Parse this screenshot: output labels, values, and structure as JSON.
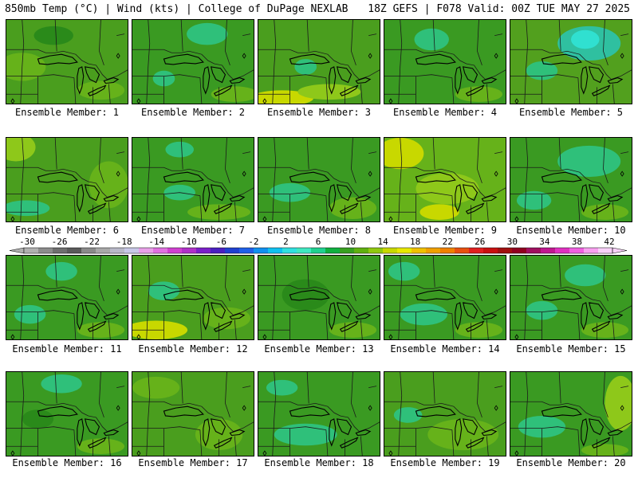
{
  "header": {
    "left": "850mb Temp (°C) | Wind (kts) | College of DuPage NEXLAB",
    "right": "18Z GEFS | F078 Valid: 00Z TUE MAY 27 2025"
  },
  "colorbar": {
    "labels": [
      "-30",
      "-26",
      "-22",
      "-18",
      "-14",
      "-10",
      "-6",
      "-2",
      "2",
      "6",
      "10",
      "14",
      "18",
      "22",
      "26",
      "30",
      "34",
      "38",
      "42"
    ],
    "colors": [
      "#b0b0b0",
      "#8c8c8c",
      "#6e6e6e",
      "#5a5a5a",
      "#8a8a8a",
      "#a8a8a8",
      "#b8b8c8",
      "#c8c8e8",
      "#e8a0e8",
      "#e070e0",
      "#d040d0",
      "#b030c8",
      "#7a20c8",
      "#4a20c0",
      "#2040d0",
      "#2060e8",
      "#1090f0",
      "#10c0f0",
      "#30e0e0",
      "#40e8c0",
      "#20d090",
      "#10b040",
      "#38a020",
      "#60b010",
      "#90c810",
      "#c8d800",
      "#e8e800",
      "#f0c000",
      "#f0a000",
      "#f08000",
      "#e85010",
      "#e02020",
      "#c81010",
      "#a01010",
      "#900020",
      "#a01060",
      "#c01890",
      "#e030c0",
      "#f060e0",
      "#f8a0f0",
      "#f8d0f8"
    ]
  },
  "panels": [
    {
      "label": "Ensemble Member: 1",
      "bg": "#4a9e1e",
      "blobs": [
        [
          "#66b21a",
          20,
          60,
          30,
          18
        ],
        [
          "#2a8a1a",
          60,
          20,
          25,
          12
        ],
        [
          "#66b21a",
          120,
          90,
          30,
          12
        ]
      ]
    },
    {
      "label": "Ensemble Member: 2",
      "bg": "#3a9a22",
      "blobs": [
        [
          "#2fc07a",
          95,
          18,
          26,
          14
        ],
        [
          "#2fc07a",
          40,
          75,
          14,
          10
        ],
        [
          "#66b21a",
          130,
          95,
          30,
          10
        ]
      ]
    },
    {
      "label": "Ensemble Member: 3",
      "bg": "#4a9e1e",
      "blobs": [
        [
          "#c8d800",
          30,
          100,
          40,
          10
        ],
        [
          "#8ec81a",
          90,
          92,
          40,
          10
        ],
        [
          "#2fc07a",
          60,
          60,
          14,
          10
        ]
      ]
    },
    {
      "label": "Ensemble Member: 4",
      "bg": "#3a9a22",
      "blobs": [
        [
          "#2fc07a",
          60,
          25,
          22,
          14
        ],
        [
          "#66b21a",
          120,
          95,
          30,
          10
        ]
      ]
    },
    {
      "label": "Ensemble Member: 5",
      "bg": "#52a01e",
      "blobs": [
        [
          "#2fc0a0",
          100,
          30,
          40,
          22
        ],
        [
          "#30e0d0",
          95,
          25,
          18,
          12
        ],
        [
          "#2fc07a",
          40,
          65,
          20,
          12
        ]
      ]
    },
    {
      "label": "Ensemble Member: 6",
      "bg": "#4a9e1e",
      "blobs": [
        [
          "#8ec81a",
          12,
          12,
          25,
          18
        ],
        [
          "#66b21a",
          130,
          60,
          25,
          30
        ],
        [
          "#2fc07a",
          25,
          90,
          30,
          10
        ]
      ]
    },
    {
      "label": "Ensemble Member: 7",
      "bg": "#3a9a22",
      "blobs": [
        [
          "#2fc07a",
          60,
          15,
          18,
          10
        ],
        [
          "#2fc07a",
          60,
          70,
          20,
          10
        ],
        [
          "#66b21a",
          110,
          95,
          40,
          10
        ]
      ]
    },
    {
      "label": "Ensemble Member: 8",
      "bg": "#3a9a22",
      "blobs": [
        [
          "#2fc07a",
          40,
          70,
          26,
          12
        ],
        [
          "#66b21a",
          120,
          90,
          30,
          14
        ]
      ]
    },
    {
      "label": "Ensemble Member: 9",
      "bg": "#66b21a",
      "blobs": [
        [
          "#c8d800",
          20,
          20,
          30,
          20
        ],
        [
          "#8ec81a",
          80,
          65,
          40,
          20
        ],
        [
          "#c8d800",
          70,
          95,
          25,
          10
        ]
      ]
    },
    {
      "label": "Ensemble Member: 10",
      "bg": "#3a9a22",
      "blobs": [
        [
          "#2fc07a",
          100,
          30,
          40,
          20
        ],
        [
          "#2fc07a",
          30,
          80,
          22,
          12
        ],
        [
          "#66b21a",
          120,
          95,
          30,
          10
        ]
      ]
    },
    {
      "label": "Ensemble Member: 11",
      "bg": "#3a9a22",
      "blobs": [
        [
          "#2fc07a",
          30,
          75,
          20,
          12
        ],
        [
          "#2fc07a",
          70,
          20,
          20,
          12
        ],
        [
          "#66b21a",
          120,
          95,
          30,
          10
        ]
      ]
    },
    {
      "label": "Ensemble Member: 12",
      "bg": "#4a9e1e",
      "blobs": [
        [
          "#c8d800",
          30,
          95,
          40,
          12
        ],
        [
          "#2fc07a",
          40,
          45,
          20,
          12
        ],
        [
          "#66b21a",
          120,
          80,
          30,
          14
        ]
      ]
    },
    {
      "label": "Ensemble Member: 13",
      "bg": "#3a9a22",
      "blobs": [
        [
          "#2a8a1a",
          60,
          50,
          30,
          20
        ],
        [
          "#66b21a",
          120,
          95,
          30,
          10
        ]
      ]
    },
    {
      "label": "Ensemble Member: 14",
      "bg": "#3a9a22",
      "blobs": [
        [
          "#2fc07a",
          50,
          75,
          30,
          14
        ],
        [
          "#2fc07a",
          25,
          20,
          20,
          12
        ],
        [
          "#66b21a",
          120,
          95,
          30,
          10
        ]
      ]
    },
    {
      "label": "Ensemble Member: 15",
      "bg": "#3a9a22",
      "blobs": [
        [
          "#2fc07a",
          95,
          25,
          26,
          14
        ],
        [
          "#2fc07a",
          40,
          70,
          20,
          12
        ],
        [
          "#66b21a",
          120,
          95,
          30,
          10
        ]
      ]
    },
    {
      "label": "Ensemble Member: 16",
      "bg": "#3a9a22",
      "blobs": [
        [
          "#2fc07a",
          70,
          15,
          26,
          12
        ],
        [
          "#66b21a",
          120,
          95,
          30,
          10
        ],
        [
          "#2a8a1a",
          40,
          60,
          20,
          12
        ]
      ]
    },
    {
      "label": "Ensemble Member: 17",
      "bg": "#4a9e1e",
      "blobs": [
        [
          "#66b21a",
          30,
          20,
          30,
          14
        ],
        [
          "#66b21a",
          110,
          80,
          30,
          20
        ]
      ]
    },
    {
      "label": "Ensemble Member: 18",
      "bg": "#3a9a22",
      "blobs": [
        [
          "#2fc07a",
          60,
          80,
          40,
          14
        ],
        [
          "#2fc07a",
          30,
          20,
          20,
          10
        ]
      ]
    },
    {
      "label": "Ensemble Member: 19",
      "bg": "#4a9e1e",
      "blobs": [
        [
          "#66b21a",
          100,
          80,
          45,
          20
        ],
        [
          "#2fc07a",
          30,
          55,
          18,
          10
        ]
      ]
    },
    {
      "label": "Ensemble Member: 20",
      "bg": "#3a9a22",
      "blobs": [
        [
          "#8ec81a",
          140,
          40,
          20,
          35
        ],
        [
          "#2fc07a",
          40,
          70,
          30,
          14
        ],
        [
          "#66b21a",
          120,
          100,
          30,
          8
        ]
      ]
    }
  ]
}
